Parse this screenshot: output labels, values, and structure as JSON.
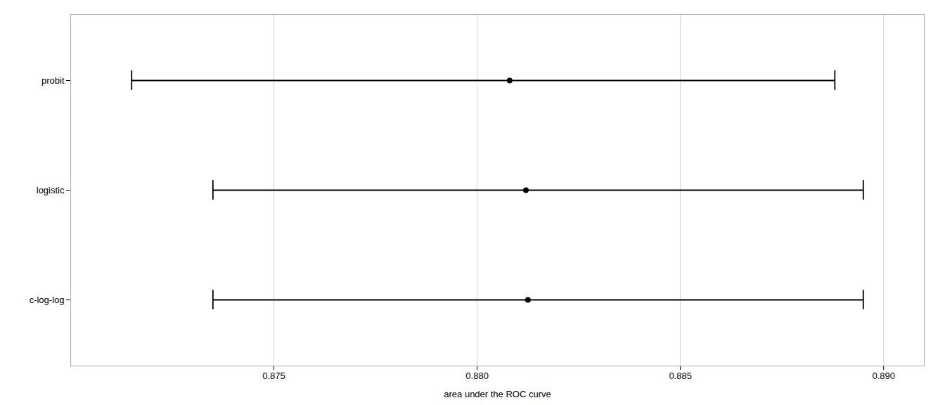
{
  "chart_data": {
    "type": "errorbar",
    "categories": [
      "c-log-log",
      "logistic",
      "probit"
    ],
    "values": [
      0.88125,
      0.8812,
      0.8808
    ],
    "ci_low": [
      0.8735,
      0.8735,
      0.8715
    ],
    "ci_high": [
      0.8895,
      0.8895,
      0.8888
    ],
    "xlabel": "area under the ROC curve",
    "xlim": [
      0.87,
      0.891
    ],
    "xticks": [
      0.875,
      {
        "value": 0.88,
        "label": "0.880"
      },
      0.885,
      {
        "value": 0.89,
        "label": "0.890"
      }
    ],
    "color": "#000000",
    "grid": true
  }
}
